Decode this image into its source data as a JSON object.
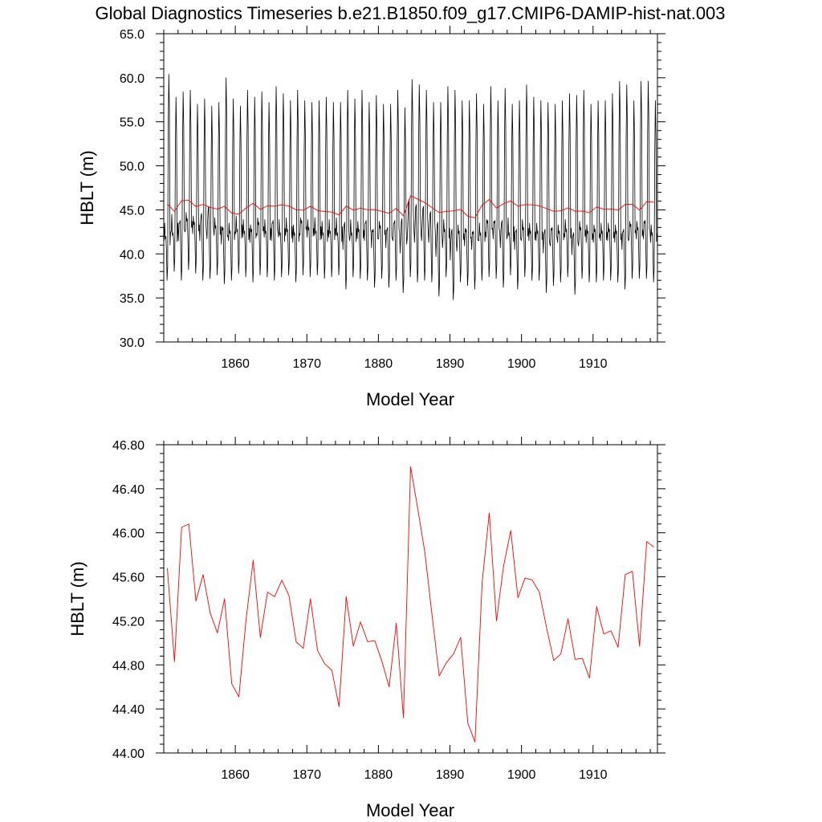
{
  "title": "Global Diagnostics Timeseries b.e21.B1850.f09_g17.CMIP6-DAMIP-hist-nat.003",
  "colors": {
    "monthly": "#000000",
    "annual": "#ff0000"
  },
  "chart_data": [
    {
      "type": "line",
      "panel": "monthly",
      "xlabel": "Model Year",
      "ylabel": "HBLT (m)",
      "xlim": [
        1850,
        1919
      ],
      "ylim": [
        30.0,
        65.0
      ],
      "x_ticks": [
        1860,
        1870,
        1880,
        1890,
        1900,
        1910
      ],
      "x_tick_labels": [
        "1860",
        "1870",
        "1880",
        "1890",
        "1900",
        "1910"
      ],
      "y_ticks": [
        30,
        35,
        40,
        45,
        50,
        55,
        60,
        65
      ],
      "y_tick_labels": [
        "30.0",
        "35.0",
        "40.0",
        "45.0",
        "50.0",
        "55.0",
        "60.0",
        "65.0"
      ],
      "series": [
        {
          "name": "",
          "color": "#000000",
          "start_year": 1850,
          "annual_max": [
            60.4,
            57.8,
            58.4,
            58.6,
            57.0,
            57.6,
            56.8,
            57.2,
            60.0,
            57.6,
            56.8,
            58.6,
            57.8,
            58.4,
            57.2,
            59.0,
            58.2,
            57.4,
            58.6,
            57.4,
            57.2,
            57.4,
            57.8,
            57.2,
            57.2,
            58.6,
            57.6,
            58.6,
            57.2,
            58.0,
            57.0,
            57.0,
            58.6,
            56.6,
            59.8,
            59.2,
            58.6,
            57.2,
            57.2,
            59.0,
            58.6,
            57.4,
            57.4,
            58.2,
            57.0,
            59.0,
            57.4,
            58.8,
            57.0,
            57.4,
            59.2,
            57.8,
            57.4,
            57.2,
            57.0,
            57.4,
            58.2,
            58.0,
            58.6,
            57.0,
            57.4,
            57.4,
            58.2,
            59.6,
            59.2,
            57.4,
            59.6,
            59.6,
            57.4,
            59.8
          ],
          "annual_min": [
            37.0,
            38.0,
            37.0,
            38.2,
            37.8,
            37.0,
            37.2,
            37.6,
            36.6,
            37.0,
            37.8,
            37.4,
            36.8,
            37.6,
            37.4,
            37.0,
            37.4,
            37.6,
            36.8,
            37.6,
            37.4,
            37.6,
            37.2,
            37.4,
            37.6,
            36.0,
            37.4,
            37.2,
            37.0,
            36.2,
            37.2,
            36.2,
            37.0,
            35.6,
            37.4,
            36.8,
            37.0,
            36.8,
            35.2,
            37.4,
            34.8,
            36.8,
            36.4,
            36.0,
            37.0,
            37.4,
            37.2,
            36.2,
            37.6,
            36.0,
            37.4,
            37.0,
            37.0,
            35.6,
            36.4,
            36.8,
            37.4,
            35.4,
            37.2,
            36.8,
            36.8,
            37.0,
            37.0,
            36.8,
            36.0,
            37.2,
            37.2,
            37.2,
            36.8,
            37.0
          ],
          "secondary_peak": [
            42.0,
            42.4,
            43.8,
            44.0,
            43.6,
            44.6,
            45.4,
            43.2,
            43.0,
            42.6,
            42.8,
            42.6,
            42.8,
            43.6,
            42.6,
            43.8,
            42.4,
            42.8,
            42.4,
            43.8,
            43.0,
            42.6,
            42.4,
            42.6,
            42.4,
            43.6,
            42.4,
            42.8,
            43.8,
            42.8,
            43.2,
            43.0,
            43.8,
            44.0,
            46.2,
            45.6,
            45.4,
            44.8,
            43.6,
            42.8,
            42.8,
            42.6,
            42.8,
            42.6,
            42.4,
            43.8,
            43.8,
            43.8,
            42.4,
            42.8,
            43.0,
            42.6,
            42.6,
            42.8,
            43.0,
            42.6,
            42.8,
            42.4,
            43.0,
            42.6,
            42.8,
            42.6,
            42.8,
            42.6,
            42.8,
            43.4,
            43.0,
            43.8,
            42.4,
            44.0
          ]
        },
        {
          "name": "",
          "color": "#ff0000",
          "x": [
            1850.5,
            1851.5,
            1852.5,
            1853.5,
            1854.5,
            1855.5,
            1856.5,
            1857.5,
            1858.5,
            1859.5,
            1860.5,
            1861.5,
            1862.5,
            1863.5,
            1864.5,
            1865.5,
            1866.5,
            1867.5,
            1868.5,
            1869.5,
            1870.5,
            1871.5,
            1872.5,
            1873.5,
            1874.5,
            1875.5,
            1876.5,
            1877.5,
            1878.5,
            1879.5,
            1880.5,
            1881.5,
            1882.5,
            1883.5,
            1884.5,
            1885.5,
            1886.5,
            1887.5,
            1888.5,
            1889.5,
            1890.5,
            1891.5,
            1892.5,
            1893.5,
            1894.5,
            1895.5,
            1896.5,
            1897.5,
            1898.5,
            1899.5,
            1900.5,
            1901.5,
            1902.5,
            1903.5,
            1904.5,
            1905.5,
            1906.5,
            1907.5,
            1908.5,
            1909.5,
            1910.5,
            1911.5,
            1912.5,
            1913.5,
            1914.5,
            1915.5,
            1916.5,
            1917.5,
            1918.5
          ],
          "values": [
            45.68,
            44.83,
            46.05,
            46.08,
            45.38,
            45.62,
            45.27,
            45.09,
            45.4,
            44.63,
            44.51,
            45.21,
            45.75,
            45.05,
            45.46,
            45.42,
            45.57,
            45.43,
            45.01,
            44.95,
            45.4,
            44.93,
            44.81,
            44.75,
            44.42,
            45.42,
            44.97,
            45.19,
            45.01,
            45.02,
            44.83,
            44.6,
            45.18,
            44.32,
            46.6,
            46.22,
            45.82,
            45.25,
            44.7,
            44.82,
            44.9,
            45.05,
            44.27,
            44.1,
            45.55,
            46.18,
            45.2,
            45.7,
            46.02,
            45.41,
            45.59,
            45.57,
            45.46,
            45.14,
            44.84,
            44.9,
            45.22,
            44.85,
            44.86,
            44.68,
            45.33,
            45.08,
            45.11,
            44.96,
            45.62,
            45.65,
            44.97,
            45.92,
            45.87
          ]
        }
      ]
    },
    {
      "type": "line",
      "panel": "annual",
      "xlabel": "Model Year",
      "ylabel": "HBLT (m)",
      "xlim": [
        1850,
        1919
      ],
      "ylim": [
        44.0,
        46.8
      ],
      "x_ticks": [
        1860,
        1870,
        1880,
        1890,
        1900,
        1910
      ],
      "x_tick_labels": [
        "1860",
        "1870",
        "1880",
        "1890",
        "1900",
        "1910"
      ],
      "y_ticks": [
        44.0,
        44.4,
        44.8,
        45.2,
        45.6,
        46.0,
        46.4,
        46.8
      ],
      "y_tick_labels": [
        "44.00",
        "44.40",
        "44.80",
        "45.20",
        "45.60",
        "46.00",
        "46.40",
        "46.80"
      ],
      "series": [
        {
          "name": "",
          "color": "#ff0000",
          "x": [
            1850.5,
            1851.5,
            1852.5,
            1853.5,
            1854.5,
            1855.5,
            1856.5,
            1857.5,
            1858.5,
            1859.5,
            1860.5,
            1861.5,
            1862.5,
            1863.5,
            1864.5,
            1865.5,
            1866.5,
            1867.5,
            1868.5,
            1869.5,
            1870.5,
            1871.5,
            1872.5,
            1873.5,
            1874.5,
            1875.5,
            1876.5,
            1877.5,
            1878.5,
            1879.5,
            1880.5,
            1881.5,
            1882.5,
            1883.5,
            1884.5,
            1885.5,
            1886.5,
            1887.5,
            1888.5,
            1889.5,
            1890.5,
            1891.5,
            1892.5,
            1893.5,
            1894.5,
            1895.5,
            1896.5,
            1897.5,
            1898.5,
            1899.5,
            1900.5,
            1901.5,
            1902.5,
            1903.5,
            1904.5,
            1905.5,
            1906.5,
            1907.5,
            1908.5,
            1909.5,
            1910.5,
            1911.5,
            1912.5,
            1913.5,
            1914.5,
            1915.5,
            1916.5,
            1917.5,
            1918.5
          ],
          "values": [
            45.68,
            44.83,
            46.05,
            46.08,
            45.38,
            45.62,
            45.27,
            45.09,
            45.4,
            44.63,
            44.51,
            45.21,
            45.75,
            45.05,
            45.46,
            45.42,
            45.57,
            45.43,
            45.01,
            44.95,
            45.4,
            44.93,
            44.81,
            44.75,
            44.42,
            45.42,
            44.97,
            45.19,
            45.01,
            45.02,
            44.83,
            44.6,
            45.18,
            44.32,
            46.6,
            46.22,
            45.82,
            45.25,
            44.7,
            44.82,
            44.9,
            45.05,
            44.27,
            44.1,
            45.55,
            46.18,
            45.2,
            45.7,
            46.02,
            45.41,
            45.59,
            45.57,
            45.46,
            45.14,
            44.84,
            44.9,
            45.22,
            44.85,
            44.86,
            44.68,
            45.33,
            45.08,
            45.11,
            44.96,
            45.62,
            45.65,
            44.97,
            45.92,
            45.87
          ]
        }
      ]
    }
  ]
}
